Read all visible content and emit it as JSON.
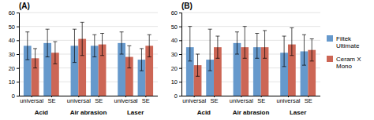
{
  "chart_data": [
    {
      "type": "bar",
      "title": "(A)",
      "groups": [
        "Acid",
        "Air abrasion",
        "Laser"
      ],
      "categories": [
        "universal",
        "SE",
        "universal",
        "SE",
        "universal",
        "SE"
      ],
      "series": [
        {
          "name": "Filtek\nUltimate",
          "color": "#6699CC",
          "values": [
            36,
            38,
            36,
            36,
            38,
            26
          ],
          "error_low": [
            10,
            10,
            12,
            8,
            8,
            8
          ],
          "error_high": [
            10,
            10,
            12,
            8,
            8,
            8
          ]
        },
        {
          "name": "Ceram X\nMono",
          "color": "#CC6655",
          "values": [
            27,
            31,
            41,
            37,
            28,
            36
          ],
          "error_low": [
            7,
            8,
            12,
            8,
            8,
            8
          ],
          "error_high": [
            7,
            8,
            12,
            8,
            8,
            8
          ]
        }
      ],
      "ylim": [
        0,
        60
      ],
      "yticks": [
        0,
        10,
        20,
        30,
        40,
        50,
        60
      ],
      "grid": true
    },
    {
      "type": "bar",
      "title": "(B)",
      "groups": [
        "Acid",
        "Air abrasion",
        "Laser"
      ],
      "categories": [
        "universal",
        "SE",
        "universal",
        "SE",
        "universal",
        "SE"
      ],
      "series": [
        {
          "name": "Filtek\nUltimate",
          "color": "#6699CC",
          "values": [
            35,
            26,
            38,
            35,
            31,
            32
          ],
          "error_low": [
            10,
            8,
            8,
            8,
            10,
            10
          ],
          "error_high": [
            15,
            22,
            8,
            10,
            12,
            12
          ]
        },
        {
          "name": "Ceram X\nMono",
          "color": "#CC6655",
          "values": [
            22,
            35,
            35,
            35,
            37,
            33
          ],
          "error_low": [
            8,
            8,
            8,
            8,
            8,
            8
          ],
          "error_high": [
            8,
            8,
            15,
            12,
            12,
            8
          ]
        }
      ],
      "ylim": [
        0,
        60
      ],
      "yticks": [
        0,
        10,
        20,
        30,
        40,
        50,
        60
      ],
      "grid": true,
      "legend": "right"
    }
  ]
}
